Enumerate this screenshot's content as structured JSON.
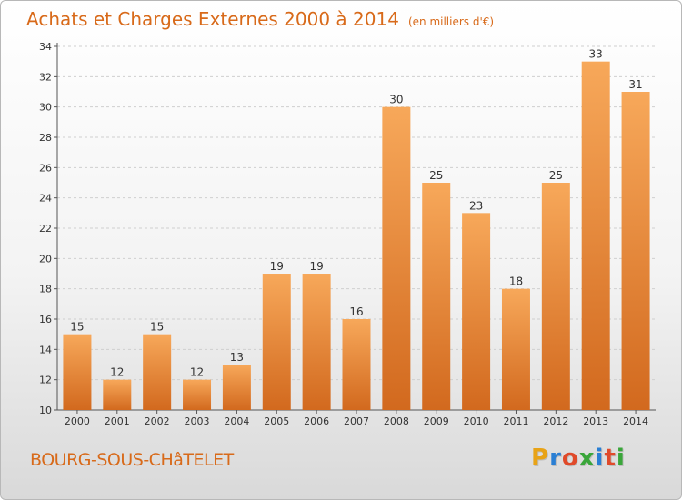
{
  "header": {
    "title": "Achats et Charges Externes 2000 à 2014",
    "unit": "(en milliers d'€)"
  },
  "footer": {
    "commune": "BOURG-SOUS-CHâTELET",
    "logo_letters": [
      "P",
      "r",
      "o",
      "x",
      "i",
      "t",
      "i"
    ],
    "logo_colors": [
      "#e8a317",
      "#2a7fd4",
      "#e04a2a",
      "#3aa63a",
      "#2a7fd4",
      "#e04a2a",
      "#3aa63a"
    ]
  },
  "chart_data": {
    "type": "bar",
    "title": "Achats et Charges Externes 2000 à 2014",
    "xlabel": "",
    "ylabel": "",
    "categories": [
      "2000",
      "2001",
      "2002",
      "2003",
      "2004",
      "2005",
      "2006",
      "2007",
      "2008",
      "2009",
      "2010",
      "2011",
      "2012",
      "2013",
      "2014"
    ],
    "values": [
      15,
      12,
      15,
      12,
      13,
      19,
      19,
      16,
      30,
      25,
      23,
      18,
      25,
      33,
      31
    ],
    "ylim": [
      10,
      34
    ],
    "yticks": [
      10,
      12,
      14,
      16,
      18,
      20,
      22,
      24,
      26,
      28,
      30,
      32,
      34
    ],
    "grid": true,
    "bar_color_top": "#f7a85a",
    "bar_color_bottom": "#d2691e"
  }
}
